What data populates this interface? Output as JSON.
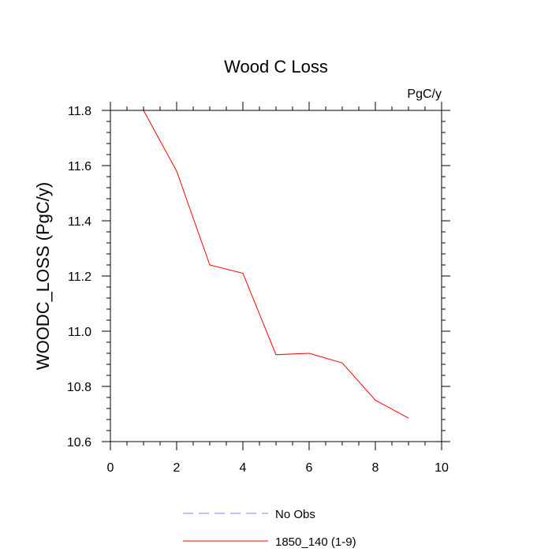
{
  "chart_data": {
    "type": "line",
    "title": "Wood C Loss",
    "units_label": "PgC/y",
    "xlabel": "",
    "ylabel": "WOODC_LOSS  (PgC/y)",
    "xlim": [
      0,
      10
    ],
    "ylim": [
      10.6,
      11.8
    ],
    "x_ticks": [
      0,
      2,
      4,
      6,
      8,
      10
    ],
    "x_tick_labels": [
      "0",
      "2",
      "4",
      "6",
      "8",
      "10"
    ],
    "x_minor_step": 0.5,
    "y_ticks": [
      10.6,
      10.8,
      11.0,
      11.2,
      11.4,
      11.6,
      11.8
    ],
    "y_tick_labels": [
      "10.6",
      "10.8",
      "11.0",
      "11.2",
      "11.4",
      "11.6",
      "11.8"
    ],
    "y_minor_step": 0.04,
    "grid": false,
    "series": [
      {
        "name": "1850_140 (1-9)",
        "color": "#ff0000",
        "dash": "solid",
        "x": [
          1,
          2,
          3,
          4,
          5,
          6,
          7,
          8,
          9
        ],
        "y": [
          11.8,
          11.58,
          11.24,
          11.21,
          10.915,
          10.92,
          10.885,
          10.75,
          10.685
        ]
      }
    ],
    "legend": [
      {
        "label": "No Obs",
        "color": "#8080ff",
        "dash": "dashed"
      },
      {
        "label": "1850_140 (1-9)",
        "color": "#ff0000",
        "dash": "solid"
      }
    ],
    "legend_position": "bottom-center"
  }
}
